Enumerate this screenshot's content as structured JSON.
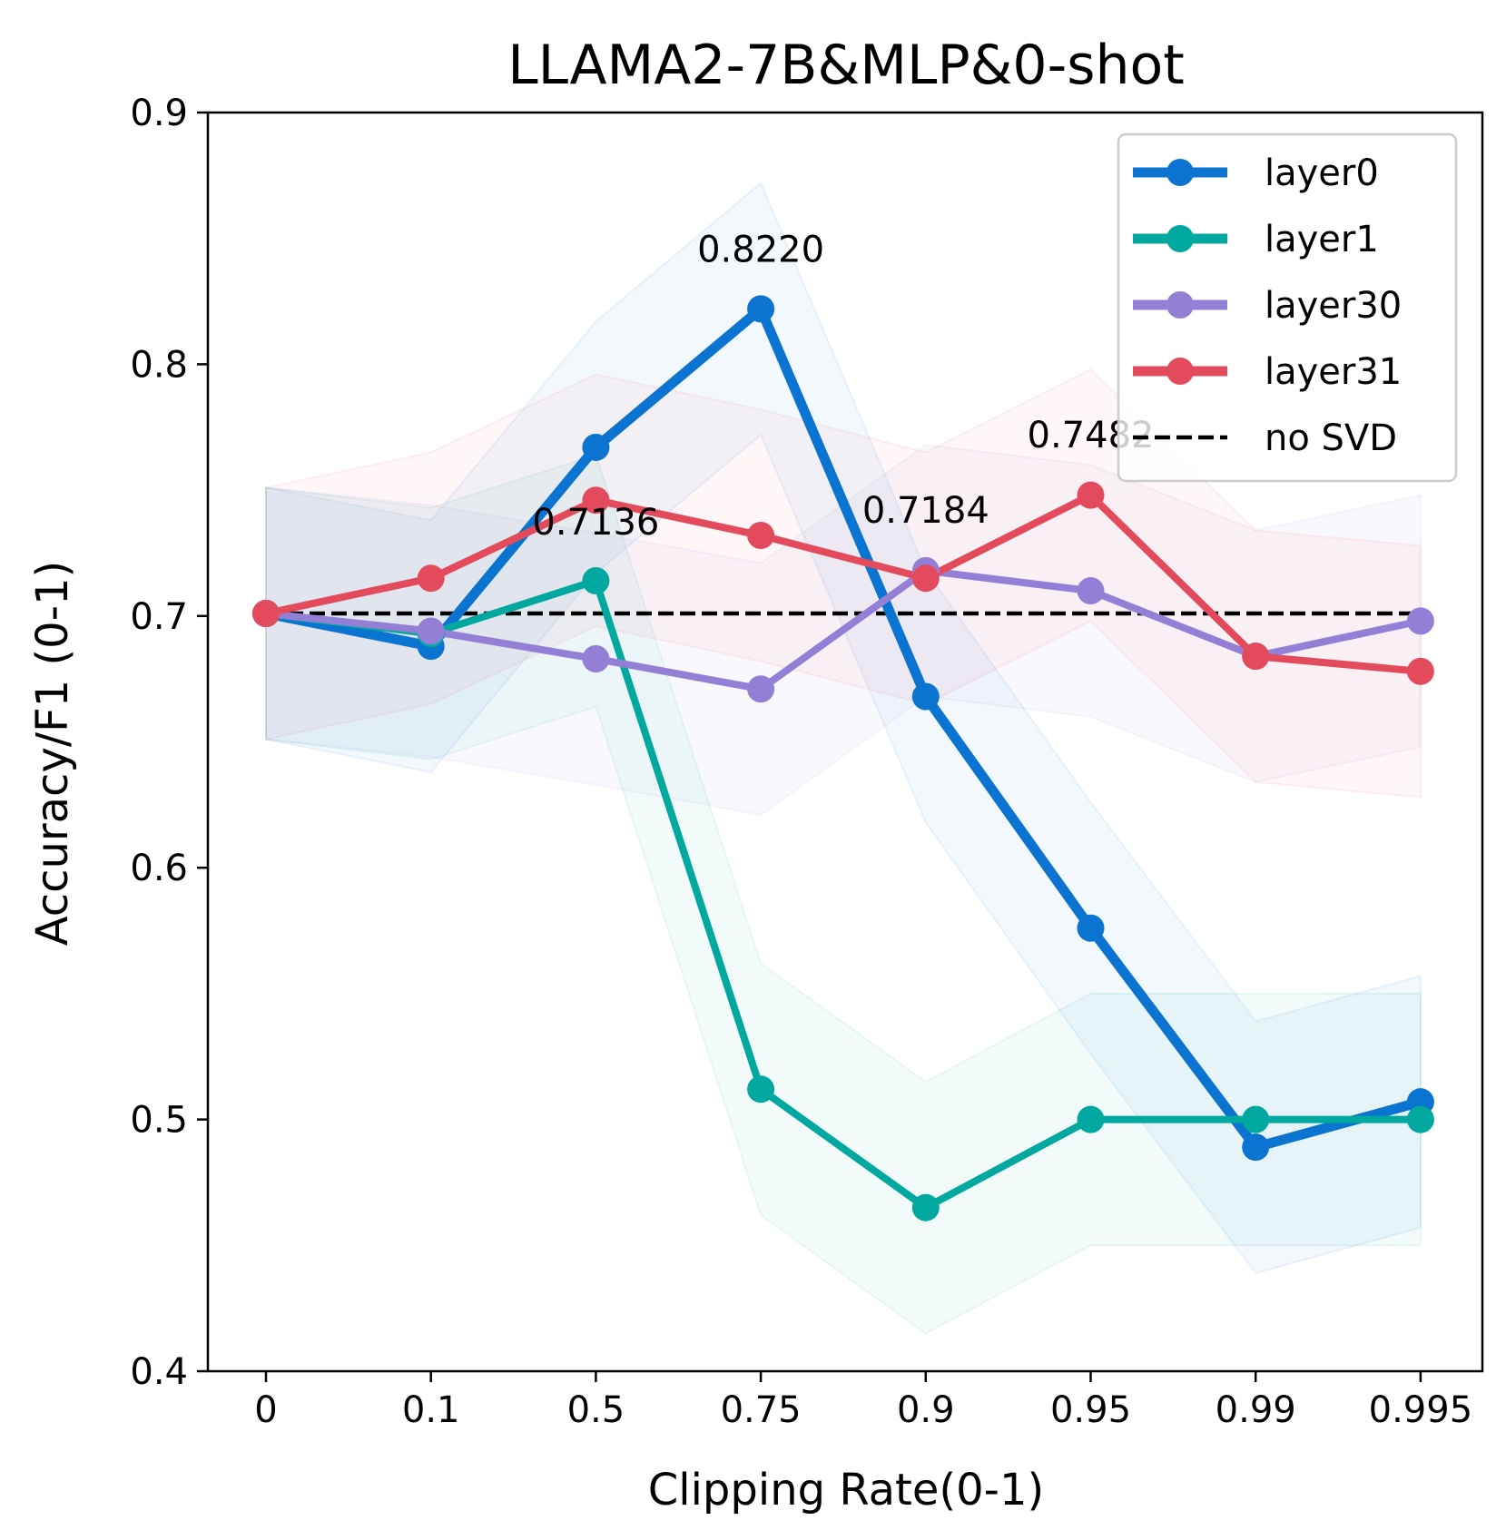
{
  "chart_data": {
    "type": "line",
    "title": "LLAMA2-7B&MLP&0-shot",
    "xlabel": "Clipping Rate(0-1)",
    "ylabel": "Accuracy/F1 (0-1)",
    "categories": [
      "0",
      "0.1",
      "0.5",
      "0.75",
      "0.9",
      "0.95",
      "0.99",
      "0.995"
    ],
    "ylim": [
      0.4,
      0.9
    ],
    "yticks": [
      "0.4",
      "0.5",
      "0.6",
      "0.7",
      "0.8",
      "0.9"
    ],
    "grid": false,
    "legend_position": "top-right",
    "series": [
      {
        "name": "layer0",
        "color": "#0a74d0",
        "values": [
          0.701,
          0.688,
          0.767,
          0.822,
          0.668,
          0.576,
          0.489,
          0.507
        ],
        "band_upper": [
          0.751,
          0.738,
          0.817,
          0.872,
          0.718,
          0.626,
          0.539,
          0.557
        ],
        "band_lower": [
          0.651,
          0.638,
          0.717,
          0.772,
          0.618,
          0.526,
          0.439,
          0.457
        ]
      },
      {
        "name": "layer1",
        "color": "#00a8a0",
        "values": [
          0.701,
          0.693,
          0.714,
          0.512,
          0.465,
          0.5,
          0.5,
          0.5
        ],
        "band_upper": [
          0.751,
          0.743,
          0.764,
          0.562,
          0.515,
          0.55,
          0.55,
          0.55
        ],
        "band_lower": [
          0.651,
          0.643,
          0.664,
          0.462,
          0.415,
          0.45,
          0.45,
          0.45
        ]
      },
      {
        "name": "layer30",
        "color": "#9380d6",
        "values": [
          0.701,
          0.694,
          0.683,
          0.671,
          0.718,
          0.71,
          0.684,
          0.698
        ],
        "band_upper": [
          0.751,
          0.744,
          0.733,
          0.721,
          0.768,
          0.76,
          0.734,
          0.748
        ],
        "band_lower": [
          0.651,
          0.644,
          0.633,
          0.621,
          0.668,
          0.66,
          0.634,
          0.648
        ]
      },
      {
        "name": "layer31",
        "color": "#e34b5c",
        "values": [
          0.701,
          0.715,
          0.746,
          0.732,
          0.715,
          0.748,
          0.684,
          0.678
        ],
        "band_upper": [
          0.751,
          0.765,
          0.796,
          0.782,
          0.765,
          0.798,
          0.734,
          0.728
        ],
        "band_lower": [
          0.651,
          0.665,
          0.696,
          0.682,
          0.665,
          0.698,
          0.634,
          0.628
        ]
      }
    ],
    "baseline": {
      "name": "no SVD",
      "value": 0.701,
      "color": "#000000",
      "style": "dashed"
    },
    "annotations": [
      {
        "text": "0.8220",
        "series": "layer0",
        "x_index": 3,
        "value": 0.822
      },
      {
        "text": "0.7136",
        "series": "layer1",
        "x_index": 2,
        "value": 0.7136
      },
      {
        "text": "0.7184",
        "series": "layer30",
        "x_index": 4,
        "value": 0.7184
      },
      {
        "text": "0.7482",
        "series": "layer31",
        "x_index": 5,
        "value": 0.7482
      }
    ]
  }
}
